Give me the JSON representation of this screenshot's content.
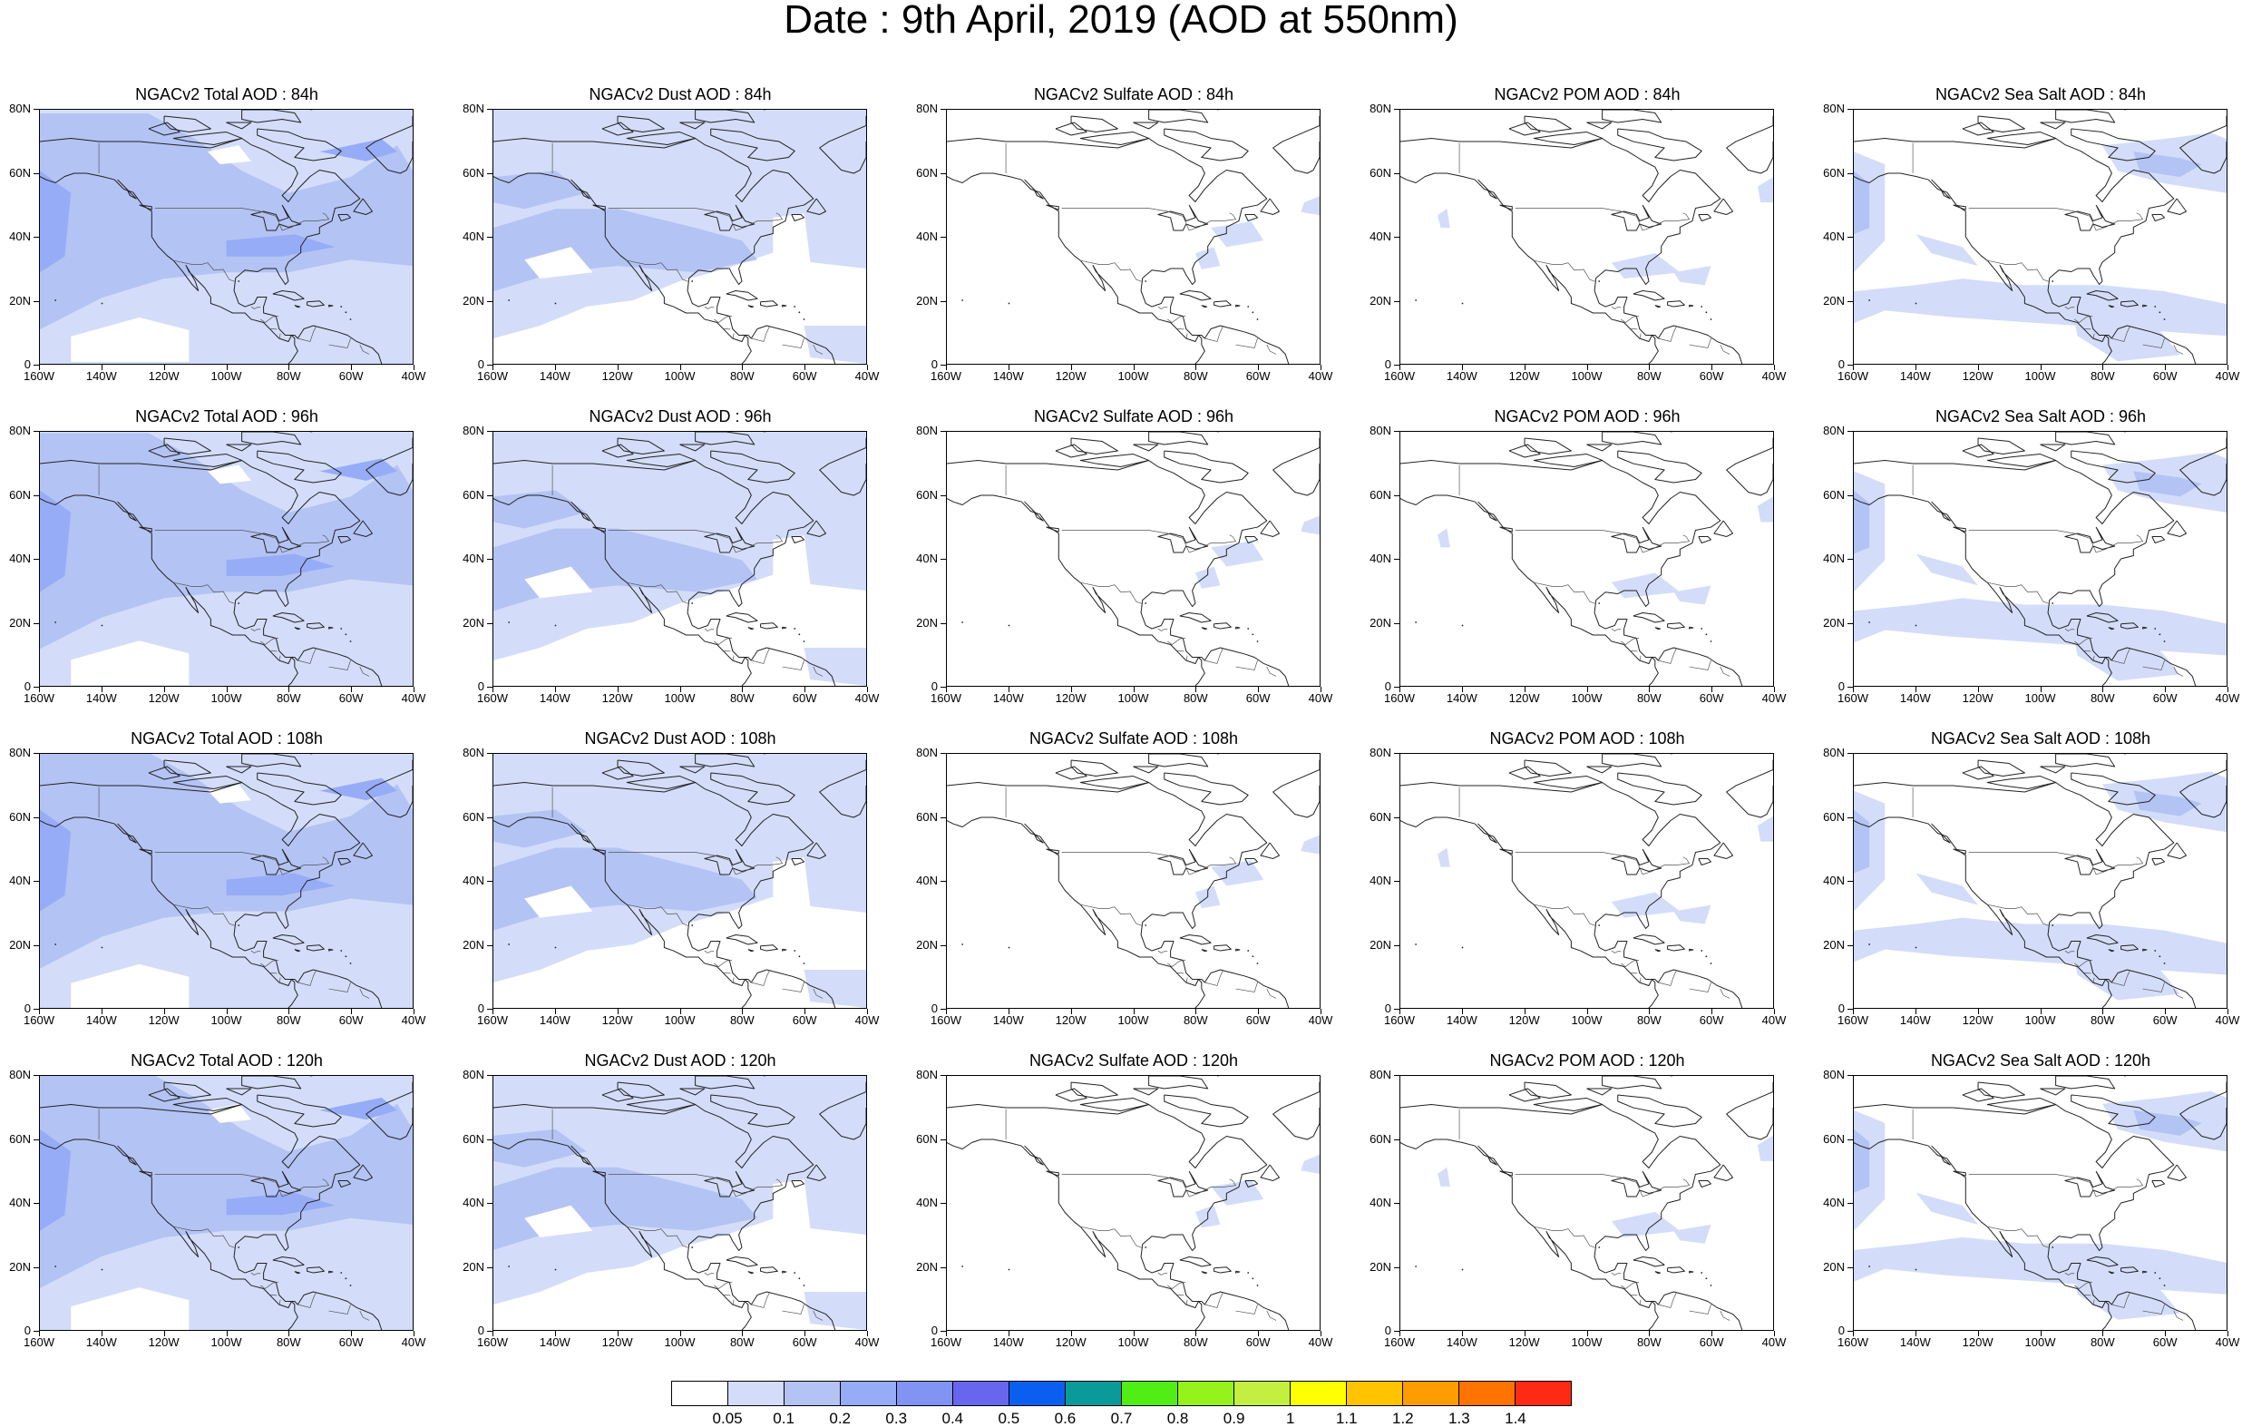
{
  "title": "Date : 9th April, 2019 (AOD at 550nm)",
  "lat_labels": [
    "80N",
    "60N",
    "40N",
    "20N",
    "0"
  ],
  "lon_labels": [
    "160W",
    "140W",
    "120W",
    "100W",
    "80W",
    "60W",
    "40W"
  ],
  "panels": [
    [
      "NGACv2 Total AOD : 84h",
      "NGACv2 Dust AOD : 84h",
      "NGACv2 Sulfate AOD : 84h",
      "NGACv2 POM AOD : 84h",
      "NGACv2 Sea Salt AOD : 84h"
    ],
    [
      "NGACv2 Total AOD : 96h",
      "NGACv2 Dust AOD : 96h",
      "NGACv2 Sulfate AOD : 96h",
      "NGACv2 POM AOD : 96h",
      "NGACv2 Sea Salt AOD : 96h"
    ],
    [
      "NGACv2 Total AOD : 108h",
      "NGACv2 Dust AOD : 108h",
      "NGACv2 Sulfate AOD : 108h",
      "NGACv2 POM AOD : 108h",
      "NGACv2 Sea Salt AOD : 108h"
    ],
    [
      "NGACv2 Total AOD : 120h",
      "NGACv2 Dust AOD : 120h",
      "NGACv2 Sulfate AOD : 120h",
      "NGACv2 POM AOD : 120h",
      "NGACv2 Sea Salt  AOD : 120h"
    ]
  ],
  "colorbar": {
    "colors": [
      "#ffffff",
      "#d3ddf9",
      "#b3c3f4",
      "#97acf6",
      "#8194f3",
      "#6667ee",
      "#0a5ff0",
      "#0a9a9a",
      "#50ee14",
      "#96f21b",
      "#c3f040",
      "#ffff00",
      "#ffc300",
      "#ff9d00",
      "#ff7300",
      "#ff2a14"
    ],
    "labels": [
      "0.05",
      "0.1",
      "0.2",
      "0.3",
      "0.4",
      "0.5",
      "0.6",
      "0.7",
      "0.8",
      "0.9",
      "1",
      "1.1",
      "1.2",
      "1.3",
      "1.4"
    ]
  },
  "fill_colors": {
    "light": "#d3ddf9",
    "medium": "#b3c3f4",
    "strong": "#97acf6"
  },
  "coastline_color": "#222222",
  "border_color": "#555555"
}
